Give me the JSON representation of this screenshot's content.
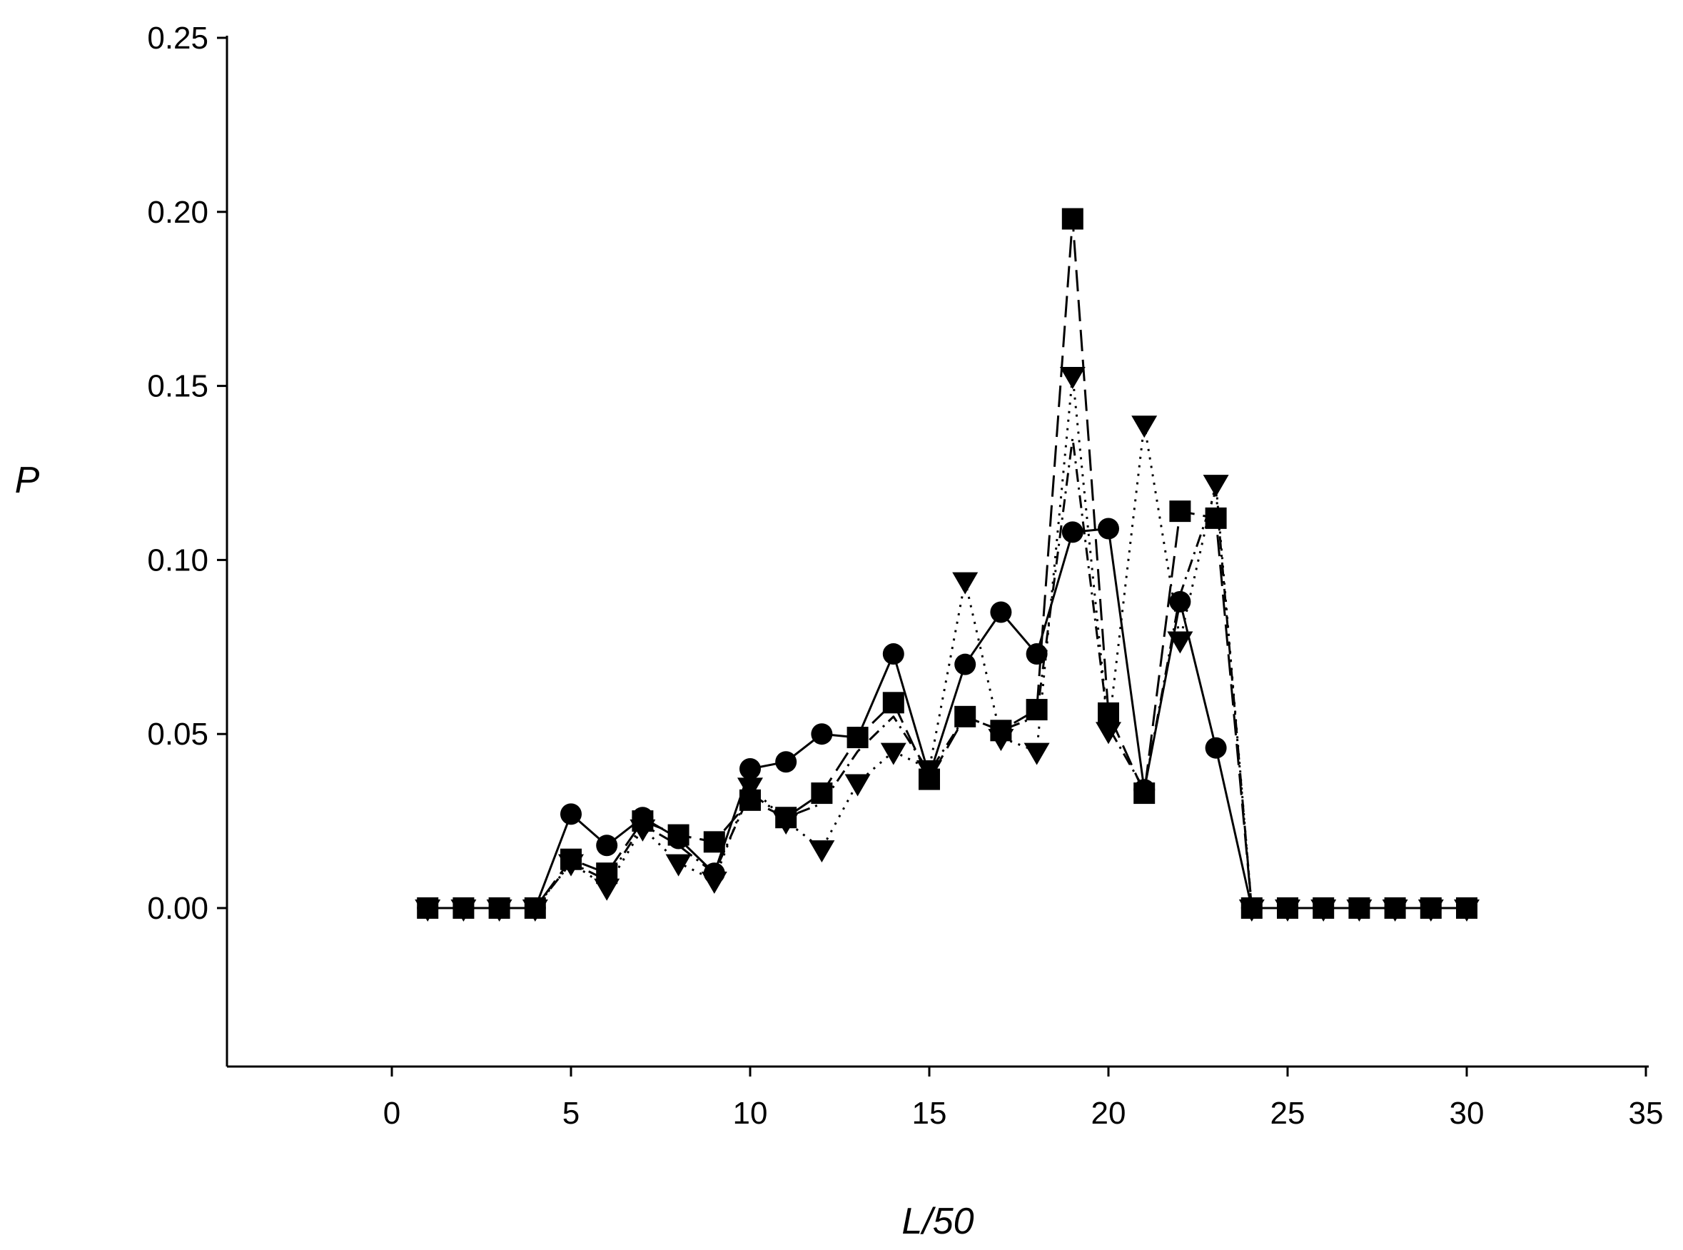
{
  "chart_data": {
    "type": "line",
    "title": "",
    "xlabel": "L/50",
    "ylabel": "P",
    "xlim": [
      -4.5,
      35
    ],
    "ylim": [
      -0.045,
      0.25
    ],
    "x_ticks": [
      0,
      5,
      10,
      15,
      20,
      25,
      30,
      35
    ],
    "x_tick_labels": [
      "0",
      "5",
      "10",
      "15",
      "20",
      "25",
      "30",
      "35"
    ],
    "y_ticks": [
      0,
      0.05,
      0.1,
      0.15,
      0.2,
      0.25
    ],
    "y_tick_labels": [
      "0.00",
      "0.05",
      "0.10",
      "0.15",
      "0.20",
      "0.25"
    ],
    "grid": false,
    "legend": "none",
    "x": [
      1,
      2,
      3,
      4,
      5,
      6,
      7,
      8,
      9,
      10,
      11,
      12,
      13,
      14,
      15,
      16,
      17,
      18,
      19,
      20,
      21,
      22,
      23,
      24,
      25,
      26,
      27,
      28,
      29,
      30
    ],
    "series": [
      {
        "marker": "circle",
        "line_style": "solid",
        "values": [
          0,
          0,
          0,
          0,
          0.027,
          0.018,
          0.026,
          0.02,
          0.01,
          0.04,
          0.042,
          0.05,
          0.049,
          0.073,
          0.038,
          0.07,
          0.085,
          0.073,
          0.108,
          0.109,
          0.034,
          0.088,
          0.046,
          0,
          0,
          0,
          0,
          0,
          0,
          0
        ]
      },
      {
        "marker": "triangle-down",
        "line_style": "dotted",
        "values": [
          0,
          0,
          0,
          0,
          0.013,
          0.006,
          0.023,
          0.013,
          0.008,
          0.035,
          0.025,
          0.017,
          0.036,
          0.045,
          0.04,
          0.094,
          0.049,
          0.045,
          0.153,
          0.051,
          0.139,
          0.077,
          0.122,
          0,
          0,
          0,
          0,
          0,
          0,
          0
        ]
      },
      {
        "marker": "square",
        "line_style": "long-dash",
        "values": [
          0,
          0,
          0,
          0,
          0.014,
          0.01,
          0.025,
          0.021,
          0.019,
          0.031,
          0.026,
          0.033,
          0.049,
          0.059,
          0.037,
          0.055,
          0.051,
          0.057,
          0.198,
          0.056,
          0.033,
          0.114,
          0.112,
          0,
          0,
          0,
          0,
          0,
          0,
          0
        ]
      },
      {
        "marker": "none",
        "line_style": "dash-dot",
        "values": [
          0,
          0,
          0,
          0,
          0.013,
          0.008,
          0.024,
          0.018,
          0.01,
          0.033,
          0.026,
          0.03,
          0.045,
          0.055,
          0.039,
          0.055,
          0.051,
          0.055,
          0.135,
          0.052,
          0.034,
          0.09,
          0.12,
          0,
          0,
          0,
          0,
          0,
          0,
          0
        ]
      }
    ]
  }
}
